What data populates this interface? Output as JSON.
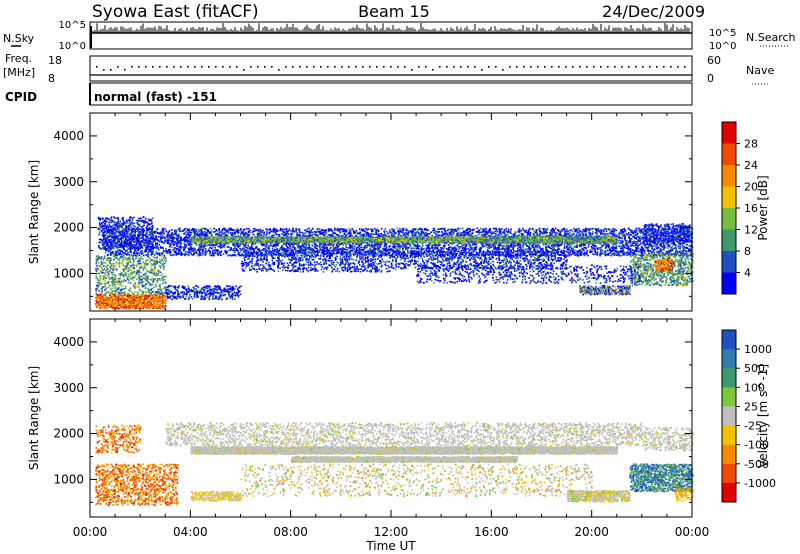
{
  "header": {
    "station": "Syowa East (fitACF)",
    "beam": "Beam 15",
    "date": "24/Dec/2009"
  },
  "top_panel": {
    "nsky_label": "N.Sky",
    "nsearch_label": "N.Search",
    "left_ticks": [
      "10^5",
      "10^0"
    ],
    "right_ticks": [
      "10^5",
      "10^0"
    ]
  },
  "freq_panel": {
    "freq_label": "Freq.",
    "freq_unit": "[MHz]",
    "nave_label": "Nave",
    "left_ticks": [
      "18",
      "8"
    ],
    "right_ticks": [
      "60",
      "0"
    ],
    "cpid_label": "CPID",
    "cpid_text": "normal (fast) -151"
  },
  "x_axis": {
    "label": "Time UT",
    "ticks": [
      "00:00",
      "04:00",
      "08:00",
      "12:00",
      "16:00",
      "20:00",
      "00:00"
    ]
  },
  "power_panel": {
    "ylabel": "Slant Range [km]",
    "yticks": [
      "1000",
      "2000",
      "3000",
      "4000"
    ],
    "colorbar_label": "Power [dB]",
    "colorbar_ticks": [
      "4",
      "8",
      "12",
      "16",
      "20",
      "24",
      "28"
    ],
    "colors": [
      "#0000ff",
      "#1f4fc1",
      "#3c9a6c",
      "#77c03f",
      "#f2c200",
      "#f58a00",
      "#ef4a00",
      "#e00000"
    ]
  },
  "velocity_panel": {
    "ylabel": "Slant Range [km]",
    "yticks": [
      "1000",
      "2000",
      "3000",
      "4000"
    ],
    "colorbar_label": "Velocity [m s^-1]",
    "colorbar_ticks": [
      "1000",
      "500",
      "100",
      "25",
      "-25",
      "-100",
      "-500",
      "-1000"
    ],
    "colors": [
      "#1f4fc1",
      "#2d7db0",
      "#3c9a6c",
      "#7cc73c",
      "#c0c0c0",
      "#f2c200",
      "#f58a00",
      "#ef4a00",
      "#e00000"
    ]
  },
  "chart_data": {
    "type": "heatmap",
    "x_range_hours": [
      0,
      24
    ],
    "y_range_km": [
      180,
      4500
    ],
    "power_db_range": [
      0,
      30
    ],
    "velocity_range_ms": [
      -1000,
      1000
    ]
  }
}
